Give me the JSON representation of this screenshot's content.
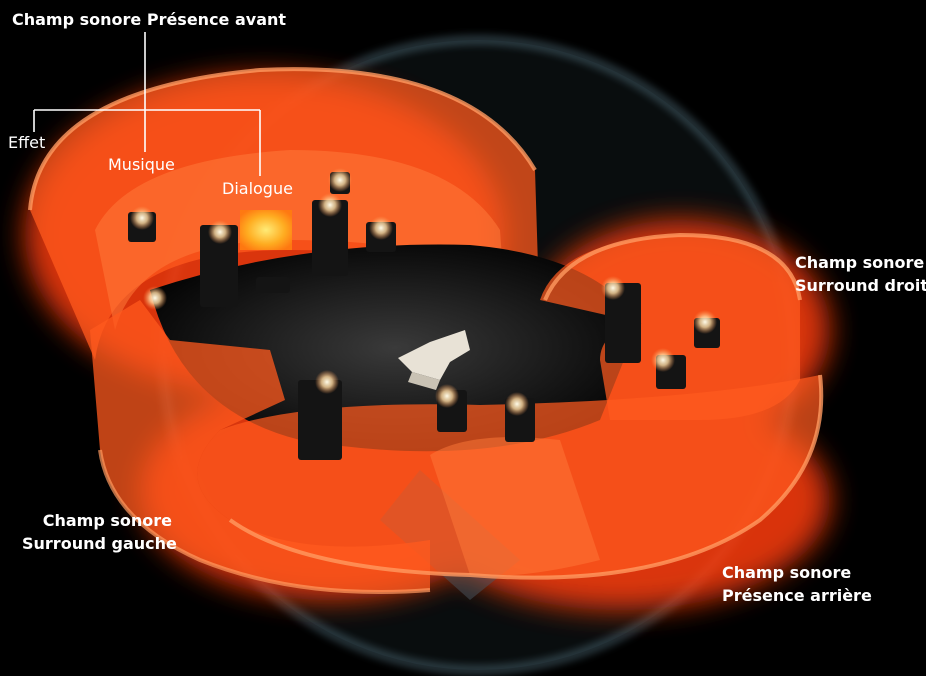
{
  "labels": {
    "front_presence": "Champ sonore Présence avant",
    "effect": "Effet",
    "music": "Musique",
    "dialogue": "Dialogue",
    "surround_right": [
      "Champ sonore",
      "Surround droit"
    ],
    "surround_left": [
      "Champ sonore",
      "Surround gauche"
    ],
    "rear_presence": [
      "Champ sonore",
      "Présence arrière"
    ]
  },
  "colors": {
    "background": "#000000",
    "field_orange": "#ff5a1e",
    "field_edge": "#ff8a4a",
    "dome": "#7fa7b8",
    "text": "#ffffff",
    "speaker": "#141414",
    "tweeter_glow": "#fff3c8"
  }
}
